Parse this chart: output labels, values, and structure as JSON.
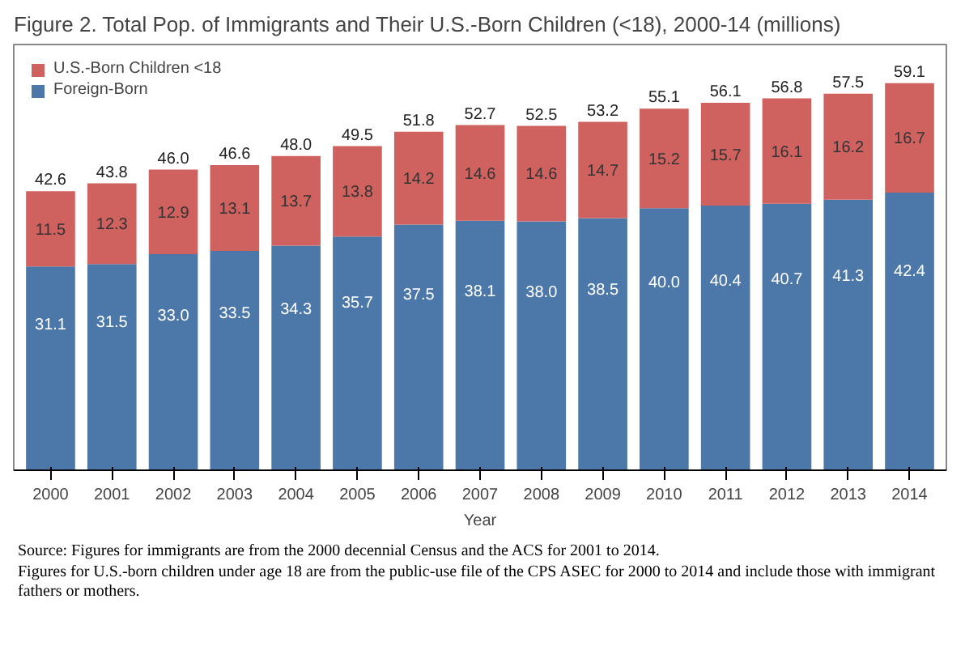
{
  "chart_data": {
    "type": "bar",
    "stacked": true,
    "title": "Figure 2. Total Pop. of Immigrants and Their U.S.-Born Children (<18), 2000-14 (millions)",
    "xlabel": "Year",
    "categories": [
      "2000",
      "2001",
      "2002",
      "2003",
      "2004",
      "2005",
      "2006",
      "2007",
      "2008",
      "2009",
      "2010",
      "2011",
      "2012",
      "2013",
      "2014"
    ],
    "series": [
      {
        "name": "Foreign-Born",
        "color": "#4b77a9",
        "values": [
          31.1,
          31.5,
          33.0,
          33.5,
          34.3,
          35.7,
          37.5,
          38.1,
          38.0,
          38.5,
          40.0,
          40.4,
          40.7,
          41.3,
          42.4
        ],
        "value_labels": [
          "31.1",
          "31.5",
          "33.0",
          "33.5",
          "34.3",
          "35.7",
          "37.5",
          "38.1",
          "38.0",
          "38.5",
          "40.0",
          "40.4",
          "40.7",
          "41.3",
          "42.4"
        ]
      },
      {
        "name": "U.S.-Born Children <18",
        "color": "#cf615f",
        "values": [
          11.5,
          12.3,
          12.9,
          13.1,
          13.7,
          13.8,
          14.2,
          14.6,
          14.6,
          14.7,
          15.2,
          15.7,
          16.1,
          16.2,
          16.7
        ],
        "value_labels": [
          "11.5",
          "12.3",
          "12.9",
          "13.1",
          "13.7",
          "13.8",
          "14.2",
          "14.6",
          "14.6",
          "14.7",
          "15.2",
          "15.7",
          "16.1",
          "16.2",
          "16.7"
        ]
      }
    ],
    "totals": [
      "42.6",
      "43.8",
      "46.0",
      "46.6",
      "48.0",
      "49.5",
      "51.8",
      "52.7",
      "52.5",
      "53.2",
      "55.1",
      "56.1",
      "56.8",
      "57.5",
      "59.1"
    ],
    "legend": "top left",
    "grid": false,
    "annotations": [
      "Source: Figures for immigrants are from the 2000 decennial Census and the ACS for 2001 to 2014.",
      "Figures for U.S.-born children under age 18 are from the public-use file of the CPS ASEC for 2000 to 2014 and include those with immigrant fathers or mothers."
    ]
  }
}
